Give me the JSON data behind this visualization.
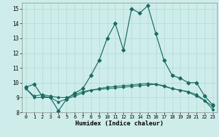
{
  "xlabel": "Humidex (Indice chaleur)",
  "background_color": "#ceecea",
  "grid_color": "#aed8d4",
  "line_color": "#1a6b60",
  "xlim": [
    -0.5,
    23.5
  ],
  "ylim": [
    8,
    15.4
  ],
  "xticks": [
    0,
    1,
    2,
    3,
    4,
    5,
    6,
    7,
    8,
    9,
    10,
    11,
    12,
    13,
    14,
    15,
    16,
    17,
    18,
    19,
    20,
    21,
    22,
    23
  ],
  "yticks": [
    8,
    9,
    10,
    11,
    12,
    13,
    14,
    15
  ],
  "series": [
    {
      "x": [
        0,
        1,
        2,
        3,
        4,
        5,
        6,
        7,
        8,
        9,
        10,
        11,
        12,
        13,
        14,
        15,
        16,
        17,
        18,
        19,
        20,
        21,
        22,
        23
      ],
      "y": [
        9.7,
        9.9,
        9.1,
        9.0,
        8.1,
        8.9,
        9.3,
        9.6,
        10.5,
        11.5,
        13.0,
        14.0,
        12.2,
        15.0,
        14.7,
        15.2,
        13.3,
        11.5,
        10.5,
        10.3,
        10.0,
        10.0,
        9.1,
        8.5
      ],
      "marker": "D",
      "markersize": 2.5,
      "linewidth": 0.9
    },
    {
      "x": [
        0,
        1,
        2,
        3,
        4,
        5,
        6,
        7,
        8,
        9,
        10,
        11,
        12,
        13,
        14,
        15,
        16,
        17,
        18,
        19,
        20,
        21,
        22,
        23
      ],
      "y": [
        9.6,
        9.0,
        9.0,
        9.0,
        8.7,
        8.9,
        9.1,
        9.3,
        9.5,
        9.6,
        9.7,
        9.75,
        9.8,
        9.85,
        9.9,
        9.95,
        9.9,
        9.8,
        9.6,
        9.5,
        9.4,
        9.2,
        8.8,
        8.2
      ],
      "marker": "D",
      "markersize": 1.8,
      "linewidth": 0.8
    },
    {
      "x": [
        0,
        1,
        2,
        3,
        4,
        5,
        6,
        7,
        8,
        9,
        10,
        11,
        12,
        13,
        14,
        15,
        16,
        17,
        18,
        19,
        20,
        21,
        22,
        23
      ],
      "y": [
        9.6,
        9.1,
        9.2,
        9.1,
        9.0,
        9.0,
        9.2,
        9.4,
        9.5,
        9.55,
        9.6,
        9.65,
        9.7,
        9.75,
        9.8,
        9.85,
        9.9,
        9.75,
        9.6,
        9.5,
        9.35,
        9.1,
        8.8,
        8.4
      ],
      "marker": "D",
      "markersize": 1.8,
      "linewidth": 0.8
    }
  ]
}
